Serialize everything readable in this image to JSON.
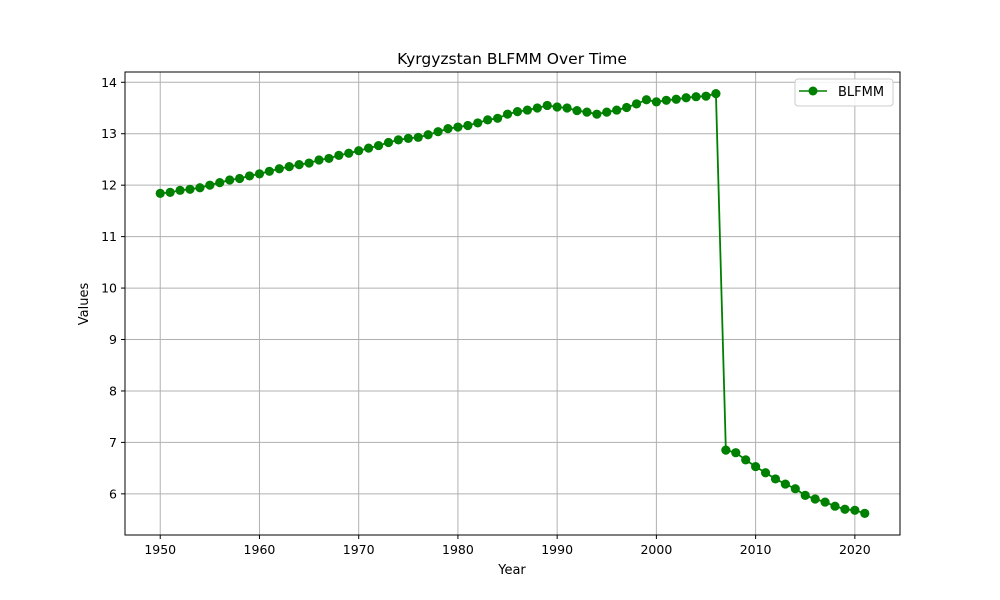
{
  "chart_data": {
    "type": "line",
    "title": "Kyrgyzstan BLFMM Over Time",
    "xlabel": "Year",
    "ylabel": "Values",
    "xlim": [
      1946.45,
      2024.55
    ],
    "ylim": [
      5.2,
      14.2
    ],
    "xticks": [
      1950,
      1960,
      1970,
      1980,
      1990,
      2000,
      2010,
      2020
    ],
    "yticks": [
      6,
      7,
      8,
      9,
      10,
      11,
      12,
      13,
      14
    ],
    "grid": true,
    "legend_position": "top-right",
    "series": [
      {
        "name": "BLFMM",
        "color": "#008000",
        "marker": "circle",
        "x": [
          1950,
          1951,
          1952,
          1953,
          1954,
          1955,
          1956,
          1957,
          1958,
          1959,
          1960,
          1961,
          1962,
          1963,
          1964,
          1965,
          1966,
          1967,
          1968,
          1969,
          1970,
          1971,
          1972,
          1973,
          1974,
          1975,
          1976,
          1977,
          1978,
          1979,
          1980,
          1981,
          1982,
          1983,
          1984,
          1985,
          1986,
          1987,
          1988,
          1989,
          1990,
          1991,
          1992,
          1993,
          1994,
          1995,
          1996,
          1997,
          1998,
          1999,
          2000,
          2001,
          2002,
          2003,
          2004,
          2005,
          2006,
          2007,
          2008,
          2009,
          2010,
          2011,
          2012,
          2013,
          2014,
          2015,
          2016,
          2017,
          2018,
          2019,
          2020,
          2021
        ],
        "y": [
          11.84,
          11.86,
          11.9,
          11.92,
          11.95,
          12.0,
          12.05,
          12.1,
          12.13,
          12.18,
          12.22,
          12.27,
          12.32,
          12.36,
          12.4,
          12.43,
          12.49,
          12.52,
          12.58,
          12.62,
          12.67,
          12.72,
          12.77,
          12.83,
          12.88,
          12.91,
          12.93,
          12.98,
          13.04,
          13.1,
          13.13,
          13.16,
          13.21,
          13.27,
          13.3,
          13.38,
          13.43,
          13.46,
          13.5,
          13.55,
          13.52,
          13.5,
          13.45,
          13.42,
          13.38,
          13.42,
          13.46,
          13.51,
          13.58,
          13.66,
          13.62,
          13.65,
          13.67,
          13.7,
          13.72,
          13.73,
          13.78,
          6.85,
          6.8,
          6.66,
          6.53,
          6.41,
          6.29,
          6.19,
          6.1,
          5.97,
          5.9,
          5.84,
          5.76,
          5.7,
          5.68,
          5.62
        ]
      }
    ]
  }
}
